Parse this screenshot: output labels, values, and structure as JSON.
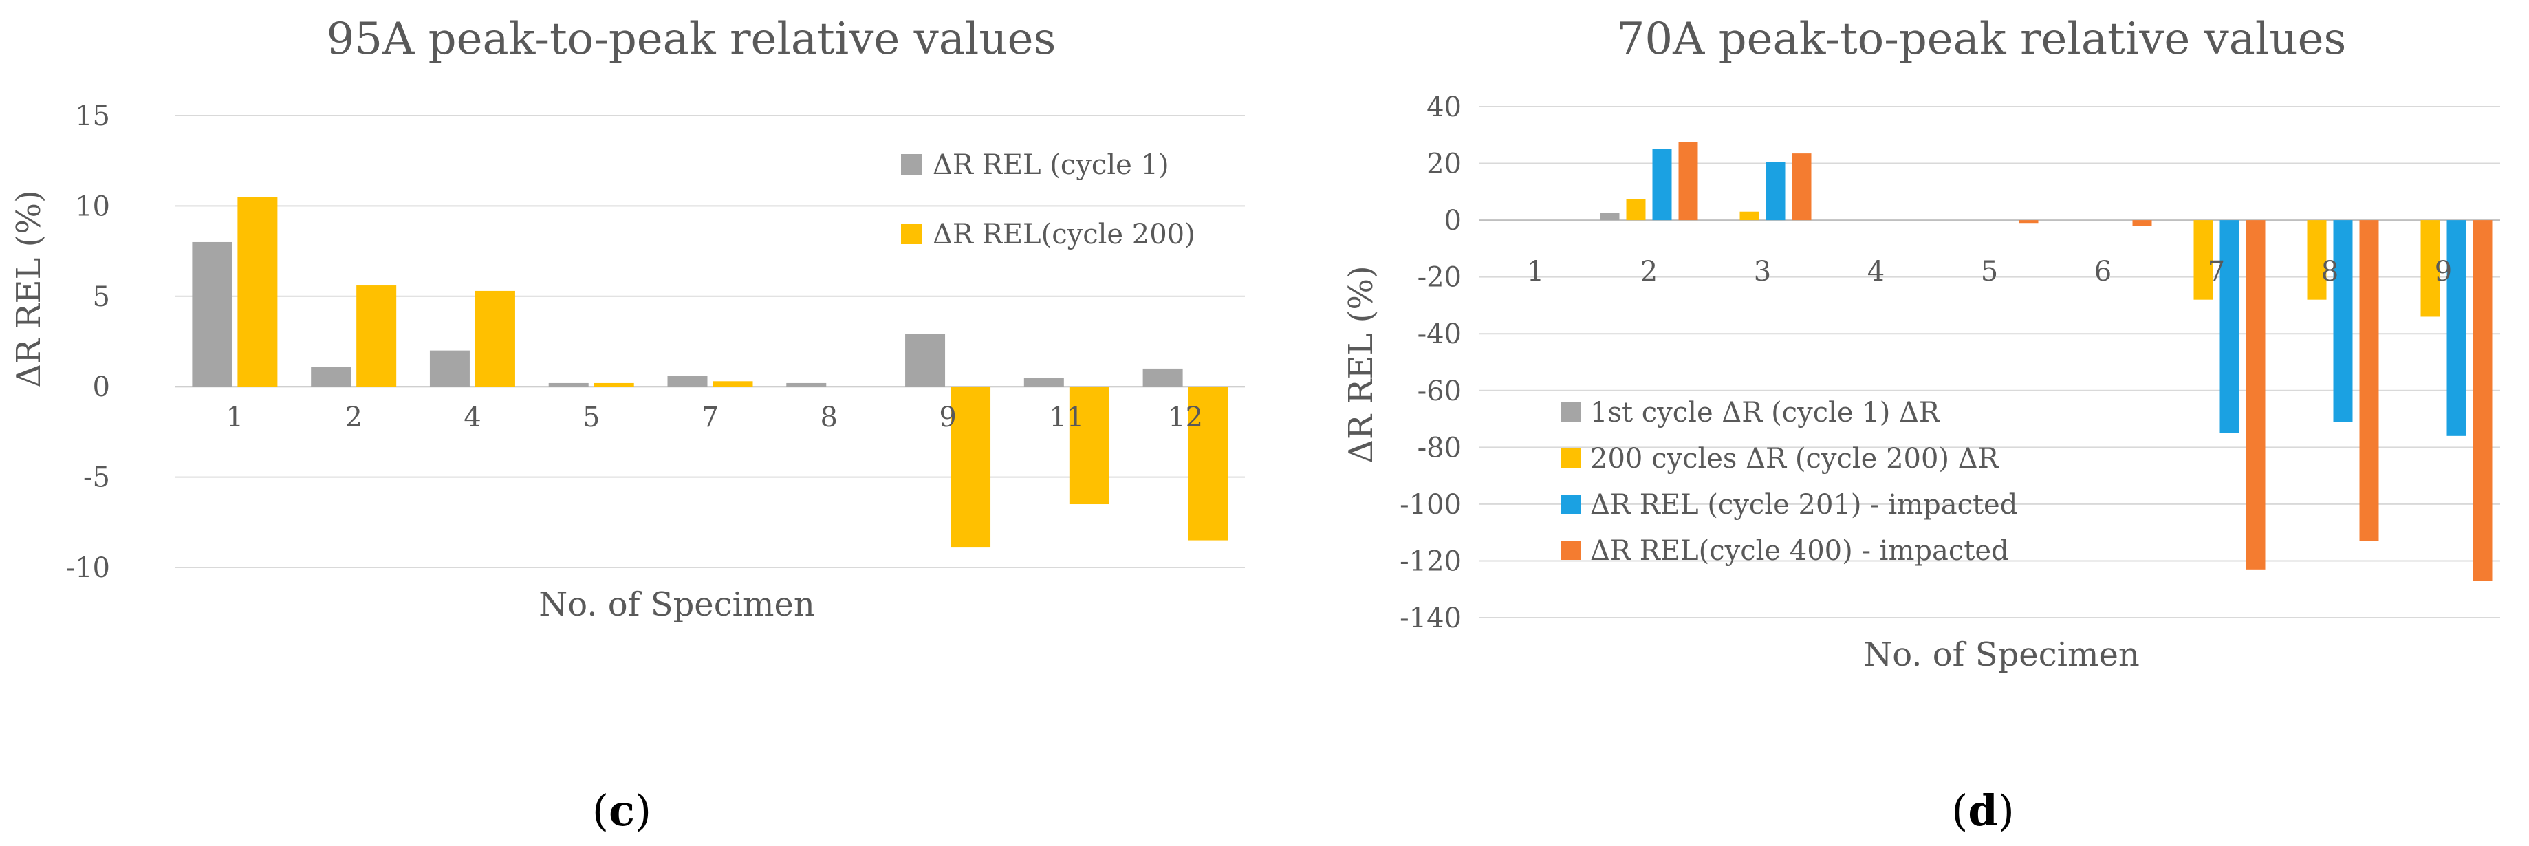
{
  "chart_data": [
    {
      "type": "bar",
      "title": "95A peak-to-peak relative values",
      "xlabel": "No. of Specimen",
      "ylabel": "ΔR REL (%)",
      "ylim": [
        -10,
        15
      ],
      "yticks": [
        -10,
        -5,
        0,
        5,
        10,
        15
      ],
      "grid": true,
      "legend_position": "top-right",
      "categories": [
        "1",
        "2",
        "4",
        "5",
        "7",
        "8",
        "9",
        "11",
        "12"
      ],
      "series": [
        {
          "name": "ΔR REL (cycle 1)",
          "color": "#a5a5a5",
          "values": [
            8.0,
            1.1,
            2.0,
            0.2,
            0.6,
            0.2,
            2.9,
            0.5,
            1.0
          ]
        },
        {
          "name": "ΔR REL(cycle 200)",
          "color": "#ffc000",
          "values": [
            10.5,
            5.6,
            5.3,
            0.2,
            0.3,
            0.0,
            -8.9,
            -6.5,
            -8.5
          ]
        }
      ],
      "caption": {
        "open": "(",
        "letter": "c",
        "close": ")"
      }
    },
    {
      "type": "bar",
      "title": "70A peak-to-peak relative values",
      "xlabel": "No. of Specimen",
      "ylabel": "ΔR REL (%)",
      "ylim": [
        -140,
        40
      ],
      "yticks": [
        -140,
        -120,
        -100,
        -80,
        -60,
        -40,
        -20,
        0,
        20,
        40
      ],
      "grid": true,
      "legend_position": "bottom-left",
      "categories": [
        "1",
        "2",
        "3",
        "4",
        "5",
        "6",
        "7",
        "8",
        "9"
      ],
      "series": [
        {
          "name": "1st cycle ΔR (cycle 1) ΔR",
          "color": "#a5a5a5",
          "values": [
            0,
            2.5,
            0,
            0,
            0,
            0,
            0,
            0,
            0
          ]
        },
        {
          "name": "200 cycles ΔR (cycle 200) ΔR",
          "color": "#ffc000",
          "values": [
            0,
            7.5,
            3.0,
            0,
            0,
            0,
            -28,
            -28,
            -34
          ]
        },
        {
          "name": "ΔR REL (cycle 201)  - impacted",
          "color": "#1ba1e2",
          "values": [
            0,
            25,
            20.5,
            0,
            0,
            0,
            -75,
            -71,
            -76
          ]
        },
        {
          "name": "ΔR REL(cycle 400)  - impacted",
          "color": "#f47c30",
          "values": [
            0,
            27.5,
            23.5,
            0,
            -1,
            -2,
            -123,
            -113,
            -127
          ]
        }
      ],
      "caption": {
        "open": "(",
        "letter": "d",
        "close": ")"
      }
    }
  ]
}
